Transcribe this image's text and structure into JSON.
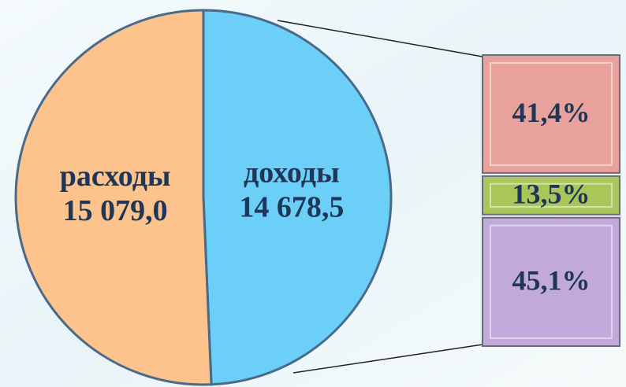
{
  "chart_data": [
    {
      "type": "pie",
      "categories": [
        "расходы",
        "доходы"
      ],
      "values": [
        15079.0,
        14678.5
      ],
      "value_labels": [
        "15 079,0",
        "14 678,5"
      ],
      "colors": [
        "#fcc38c",
        "#6ccff7"
      ]
    },
    {
      "type": "bar",
      "values": [
        41.4,
        13.5,
        45.1
      ],
      "value_labels": [
        "41,4%",
        "13,5%",
        "45,1%"
      ],
      "colors": [
        "#e9a19b",
        "#a9c65b",
        "#c1a9d9"
      ]
    }
  ]
}
